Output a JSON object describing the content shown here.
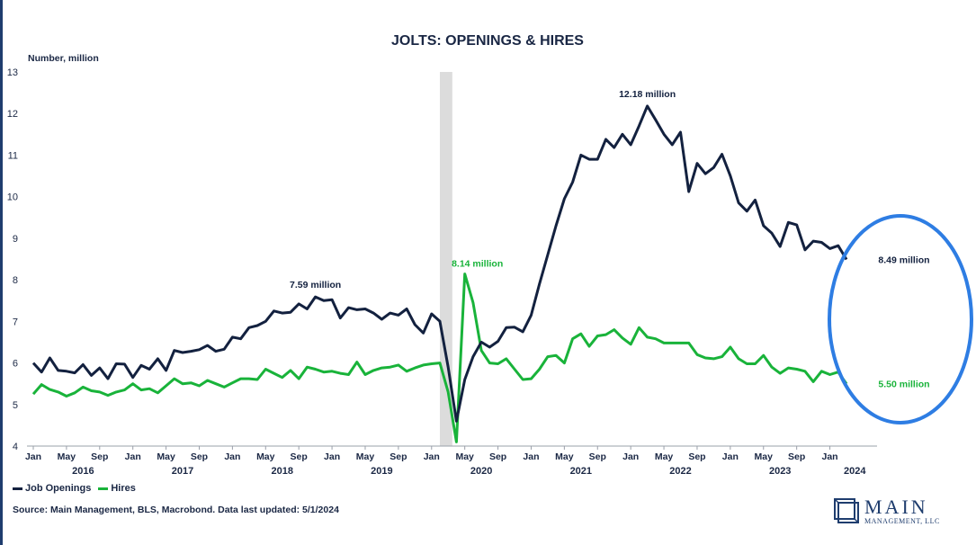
{
  "colors": {
    "openings": "#13213f",
    "hires": "#19b33a",
    "recession": "#dcdcdc",
    "circle": "#2e7de3",
    "text": "#1a2744",
    "axis": "#9aa0aa"
  },
  "chart_data": {
    "type": "line",
    "title": "JOLTS: OPENINGS & HIRES",
    "ylabel": "Number, million",
    "ylim": [
      4,
      13
    ],
    "yticks": [
      4,
      5,
      6,
      7,
      8,
      9,
      10,
      11,
      12,
      13
    ],
    "x_start": "2016-01",
    "x_end": "2024-03",
    "recession": {
      "start": 49,
      "end": 50.5
    },
    "month_ticks": [
      {
        "m": 0,
        "label": "Jan"
      },
      {
        "m": 4,
        "label": "May"
      },
      {
        "m": 8,
        "label": "Sep"
      },
      {
        "m": 12,
        "label": "Jan"
      },
      {
        "m": 16,
        "label": "May"
      },
      {
        "m": 20,
        "label": "Sep"
      },
      {
        "m": 24,
        "label": "Jan"
      },
      {
        "m": 28,
        "label": "May"
      },
      {
        "m": 32,
        "label": "Sep"
      },
      {
        "m": 36,
        "label": "Jan"
      },
      {
        "m": 40,
        "label": "May"
      },
      {
        "m": 44,
        "label": "Sep"
      },
      {
        "m": 48,
        "label": "Jan"
      },
      {
        "m": 52,
        "label": "May"
      },
      {
        "m": 56,
        "label": "Sep"
      },
      {
        "m": 60,
        "label": "Jan"
      },
      {
        "m": 64,
        "label": "May"
      },
      {
        "m": 68,
        "label": "Sep"
      },
      {
        "m": 72,
        "label": "Jan"
      },
      {
        "m": 76,
        "label": "May"
      },
      {
        "m": 80,
        "label": "Sep"
      },
      {
        "m": 84,
        "label": "Jan"
      },
      {
        "m": 88,
        "label": "May"
      },
      {
        "m": 92,
        "label": "Sep"
      },
      {
        "m": 96,
        "label": "Jan"
      }
    ],
    "year_labels": [
      {
        "m": 6,
        "label": "2016"
      },
      {
        "m": 18,
        "label": "2017"
      },
      {
        "m": 30,
        "label": "2018"
      },
      {
        "m": 42,
        "label": "2019"
      },
      {
        "m": 54,
        "label": "2020"
      },
      {
        "m": 66,
        "label": "2021"
      },
      {
        "m": 78,
        "label": "2022"
      },
      {
        "m": 90,
        "label": "2023"
      },
      {
        "m": 99,
        "label": "2024"
      }
    ],
    "series": [
      {
        "name": "Job Openings",
        "values": [
          6.0,
          5.78,
          6.12,
          5.82,
          5.8,
          5.76,
          5.96,
          5.7,
          5.88,
          5.62,
          5.98,
          5.97,
          5.65,
          5.94,
          5.85,
          6.1,
          5.82,
          6.3,
          6.25,
          6.28,
          6.32,
          6.42,
          6.28,
          6.33,
          6.62,
          6.58,
          6.85,
          6.9,
          7.0,
          7.25,
          7.2,
          7.22,
          7.42,
          7.3,
          7.59,
          7.5,
          7.52,
          7.08,
          7.33,
          7.28,
          7.3,
          7.2,
          7.05,
          7.2,
          7.15,
          7.3,
          6.92,
          6.72,
          7.18,
          7.0,
          5.9,
          4.6,
          5.6,
          6.15,
          6.5,
          6.38,
          6.52,
          6.85,
          6.86,
          6.75,
          7.15,
          7.9,
          8.6,
          9.3,
          9.95,
          10.35,
          11.0,
          10.9,
          10.9,
          11.38,
          11.18,
          11.5,
          11.25,
          11.7,
          12.18,
          11.85,
          11.5,
          11.25,
          11.55,
          10.12,
          10.8,
          10.55,
          10.7,
          11.02,
          10.5,
          9.85,
          9.65,
          9.92,
          9.3,
          9.12,
          8.8,
          9.38,
          9.32,
          8.72,
          8.93,
          8.9,
          8.75,
          8.82,
          8.49
        ]
      },
      {
        "name": "Hires",
        "values": [
          5.25,
          5.48,
          5.36,
          5.3,
          5.2,
          5.28,
          5.42,
          5.33,
          5.3,
          5.22,
          5.3,
          5.35,
          5.5,
          5.35,
          5.38,
          5.28,
          5.45,
          5.62,
          5.5,
          5.52,
          5.45,
          5.58,
          5.5,
          5.42,
          5.52,
          5.62,
          5.62,
          5.6,
          5.85,
          5.75,
          5.65,
          5.82,
          5.62,
          5.9,
          5.85,
          5.78,
          5.8,
          5.75,
          5.72,
          6.02,
          5.72,
          5.82,
          5.88,
          5.9,
          5.95,
          5.8,
          5.88,
          5.95,
          5.98,
          6.0,
          5.3,
          4.1,
          8.14,
          7.45,
          6.3,
          6.0,
          5.98,
          6.1,
          5.85,
          5.6,
          5.62,
          5.85,
          6.15,
          6.18,
          6.0,
          6.58,
          6.7,
          6.4,
          6.65,
          6.68,
          6.8,
          6.6,
          6.45,
          6.85,
          6.62,
          6.58,
          6.48,
          6.48,
          6.48,
          6.48,
          6.2,
          6.12,
          6.1,
          6.15,
          6.38,
          6.1,
          5.98,
          5.98,
          6.18,
          5.9,
          5.75,
          5.88,
          5.85,
          5.8,
          5.55,
          5.8,
          5.72,
          5.78,
          5.5
        ]
      }
    ],
    "annotations": [
      {
        "series": 0,
        "index": 34,
        "text": "7.59 million",
        "dx": 0,
        "dy": -10
      },
      {
        "series": 1,
        "index": 52,
        "text": "8.14 million",
        "dx": 14,
        "dy": -8
      },
      {
        "series": 0,
        "index": 74,
        "text": "12.18 million",
        "dx": 0,
        "dy": -10
      },
      {
        "series": 0,
        "index": 98,
        "text": "8.49 million",
        "dx": 64,
        "dy": 4
      },
      {
        "series": 1,
        "index": 98,
        "text": "5.50 million",
        "dx": 64,
        "dy": 4
      }
    ]
  },
  "legend": {
    "openings_label": "Job Openings",
    "hires_label": "Hires"
  },
  "source": "Source: Main Management, BLS, Macrobond. Data last updated: 5/1/2024",
  "logo": {
    "name": "MAIN",
    "subtitle": "MANAGEMENT, LLC"
  }
}
